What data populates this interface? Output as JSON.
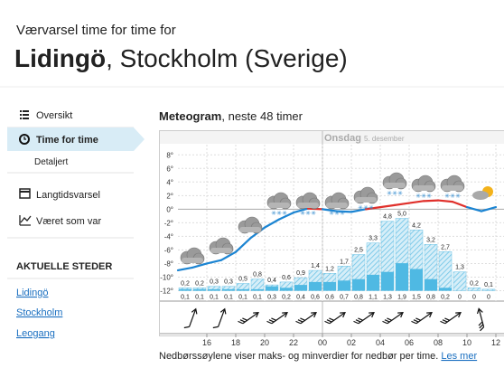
{
  "header": {
    "subtitle": "Værvarsel time for time for",
    "place": "Lidingö",
    "region": ", Stockholm (Sverige)"
  },
  "nav": {
    "items": [
      "Oversikt",
      "Time for time",
      "Detaljert",
      "Langtidsvarsel",
      "Været som var"
    ],
    "section_title": "AKTUELLE STEDER",
    "places": [
      "Lidingö",
      "Stockholm",
      "Leogang"
    ]
  },
  "chart_data": {
    "type": "meteogram",
    "title": "Meteogram",
    "subtitle": ", neste 48 timer",
    "day": "Onsdag",
    "date": "5. desember",
    "x": [
      null,
      null,
      "16",
      null,
      "18",
      null,
      "20",
      null,
      "22",
      null,
      "00",
      null,
      "02",
      null,
      "04",
      null,
      "06",
      null,
      "08",
      null,
      "10",
      null,
      "12"
    ],
    "ylim": [
      -13,
      9.5
    ],
    "yticks": [
      {
        "value": 8,
        "label": "8°"
      },
      {
        "value": 6,
        "label": "6°"
      },
      {
        "value": 4,
        "label": "4°"
      },
      {
        "value": 2,
        "label": "2°"
      },
      {
        "value": 0,
        "label": "0°"
      },
      {
        "value": -2,
        "label": "-2°"
      },
      {
        "value": -4,
        "label": "-4°"
      },
      {
        "value": -6,
        "label": "-6°"
      },
      {
        "value": -8,
        "label": "-8°"
      },
      {
        "value": -10,
        "label": "-10°"
      },
      {
        "value": -12,
        "label": "-12°"
      }
    ],
    "grid": true,
    "temperature": {
      "values": [
        -9,
        -8.6,
        -8,
        -7.5,
        -6.3,
        -4.3,
        -2.7,
        -1.5,
        -0.5,
        0.1,
        0,
        -0.3,
        -0.4,
        0,
        0.3,
        0.6,
        0.9,
        1.2,
        1.3,
        1.1,
        0.3,
        -0.3,
        0.3
      ],
      "color_above_zero": "#e0302b",
      "color_below_zero": "#1b84d2"
    },
    "precipitation_max": {
      "values": [
        0.2,
        0.2,
        0.3,
        0.3,
        0.5,
        0.8,
        0.4,
        0.6,
        0.9,
        1.4,
        1.2,
        1.7,
        2.5,
        3.3,
        4.8,
        5.0,
        4.2,
        3.2,
        2.7,
        1.3,
        0.2,
        0.1
      ],
      "value_labels": [
        "0,2",
        "0,2",
        "0,3",
        "0,3",
        "0,5",
        "0,8",
        "0,4",
        "0,6",
        "0,9",
        "1,4",
        "1,2",
        "1,7",
        "2,5",
        "3,3",
        "4,8",
        "5,0",
        "4,2",
        "3,2",
        "2,7",
        "1,3",
        "0,2",
        "0,1"
      ],
      "color": "#6cc3e6"
    },
    "precipitation_min": {
      "values": [
        0.1,
        0.1,
        0.1,
        0.1,
        0.1,
        0.1,
        0.3,
        0.2,
        0.4,
        0.6,
        0.6,
        0.7,
        0.8,
        1.1,
        1.3,
        1.9,
        1.5,
        0.8,
        0.2,
        0,
        0,
        0
      ],
      "value_labels": [
        "0,1",
        "0,1",
        "0,1",
        "0,1",
        "0,1",
        "0,1",
        "0,3",
        "0,2",
        "0,4",
        "0,6",
        "0,6",
        "0,7",
        "0,8",
        "1,1",
        "1,3",
        "1,9",
        "1,5",
        "0,8",
        "0,2",
        "0",
        "0",
        "0"
      ],
      "color": "#4fb9e3"
    }
  },
  "footer": {
    "text": "Nedbørssøylene viser maks- og minverdier for nedbør per time.",
    "link": "Les mer"
  }
}
